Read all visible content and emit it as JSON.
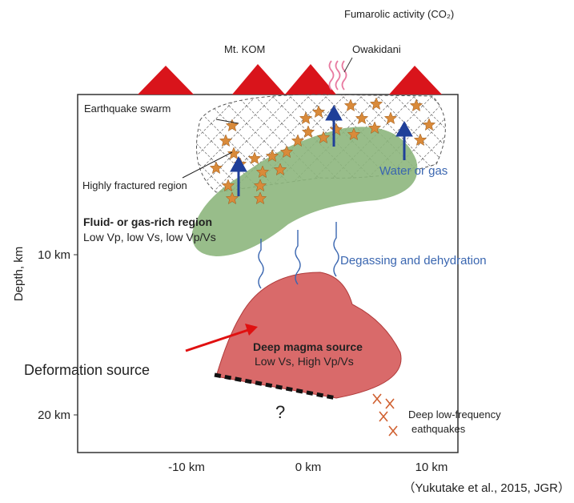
{
  "labels": {
    "fumarolic": "Fumarolic activity (CO₂)",
    "mt_kom": "Mt. KOM",
    "owakidani": "Owakidani",
    "earthquake_swarm": "Earthquake swarm",
    "fractured": "Highly fractured region",
    "water_gas": "Water or gas",
    "fluid_region": "Fluid- or gas-rich region",
    "fluid_props": "Low Vp, low Vs, low Vp/Vs",
    "degassing": "Degassing and dehydration",
    "magma": "Deep magma source",
    "magma_props": "Low Vs, High Vp/Vs",
    "deformation": "Deformation source",
    "question": "?",
    "dlf_1": "Deep low-frequency",
    "dlf_2": "eathquakes"
  },
  "axes": {
    "y_label": "Depth, km",
    "y_ticks": [
      "10 km",
      "20 km"
    ],
    "x_ticks": [
      "-10 km",
      "0 km",
      "10 km"
    ]
  },
  "citation": "（Yukutake et al., 2015, JGR）"
}
